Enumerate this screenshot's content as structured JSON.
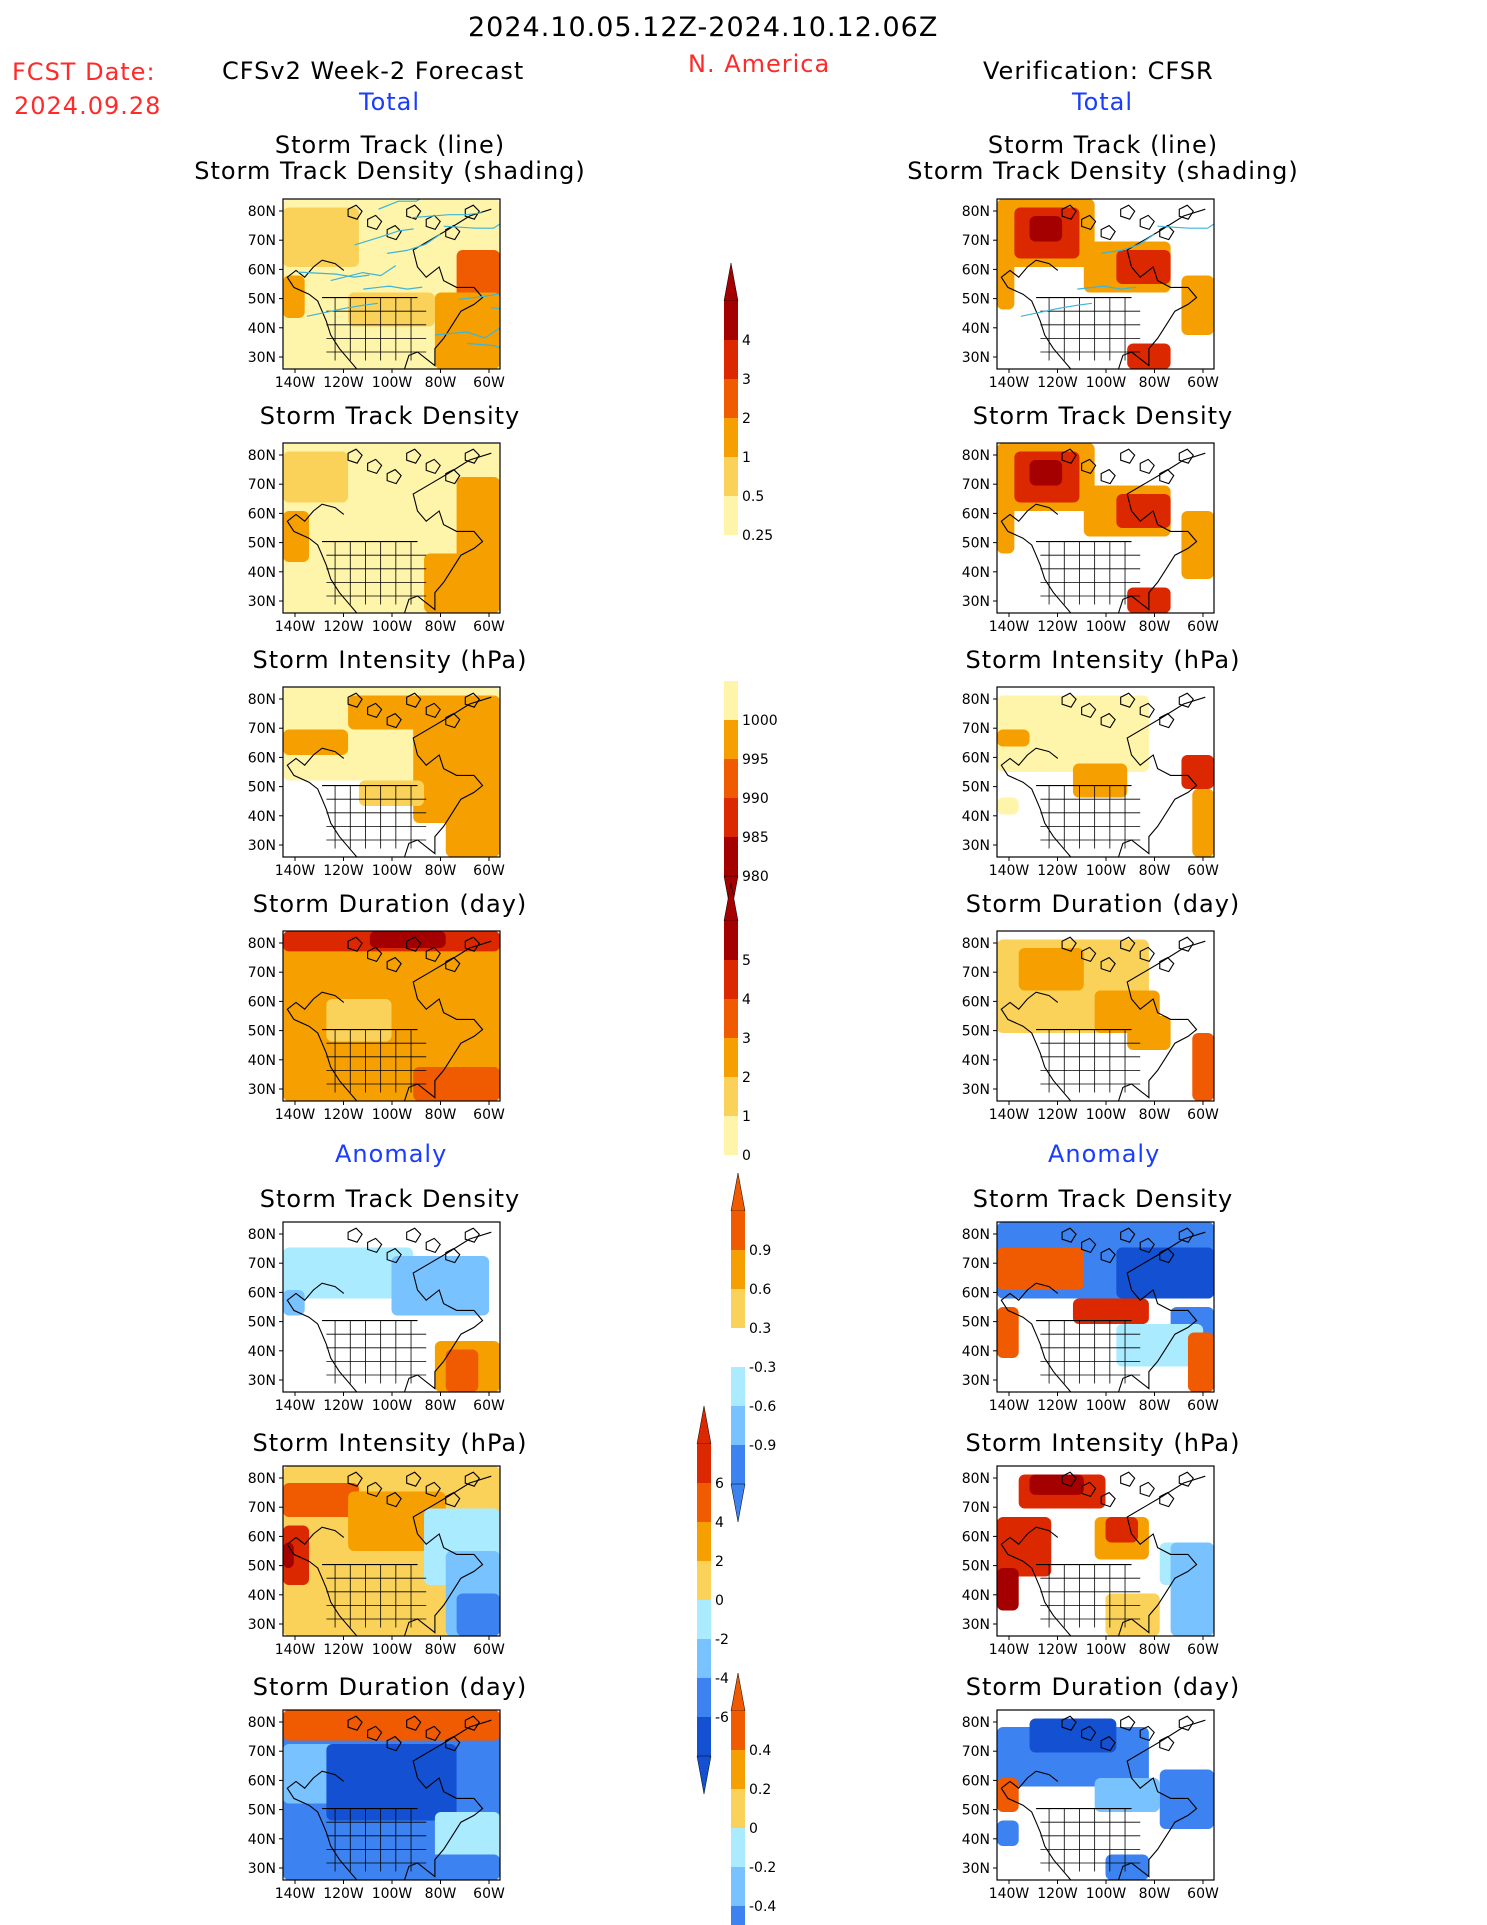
{
  "header": {
    "date_range": "2024.10.05.12Z-2024.10.12.06Z",
    "fcst_label": "FCST Date:",
    "fcst_date": "2024.09.28",
    "forecast_title": "CFSv2 Week-2 Forecast",
    "region": "N. America",
    "verification_title": "Verification: CFSR"
  },
  "sections": {
    "total": "Total",
    "anomaly": "Anomaly"
  },
  "panel_titles": {
    "track_line": "Storm Track (line)",
    "track_density_shading": "Storm Track Density (shading)",
    "track_density": "Storm Track Density",
    "intensity": "Storm Intensity (hPa)",
    "duration": "Storm Duration (day)"
  },
  "axes": {
    "lat_labels": [
      "80N",
      "70N",
      "60N",
      "50N",
      "40N",
      "30N"
    ],
    "lon_labels": [
      "140W",
      "120W",
      "100W",
      "80W",
      "60W"
    ]
  },
  "colorbars": {
    "density_total": [
      "4",
      "3",
      "2",
      "1",
      "0.5",
      "0.25"
    ],
    "intensity_total": [
      "1000",
      "995",
      "990",
      "985",
      "980"
    ],
    "duration_total": [
      "5",
      "4",
      "3",
      "2",
      "1",
      "0"
    ],
    "density_anom": [
      "0.9",
      "0.6",
      "0.3",
      "-0.3",
      "-0.6",
      "-0.9"
    ],
    "intensity_anom": [
      "6",
      "4",
      "2",
      "0",
      "-2",
      "-4",
      "-6"
    ],
    "duration_anom": [
      "0.4",
      "0.2",
      "0",
      "-0.2",
      "-0.4"
    ]
  },
  "colors": {
    "dark_red": "#a50000",
    "red": "#dc2800",
    "orange_red": "#f05a00",
    "orange": "#f5a000",
    "light_orange": "#fad25a",
    "pale_yellow": "#fff5aa",
    "pale_blue": "#aaebff",
    "light_blue": "#78c3ff",
    "blue": "#3c82f0",
    "dark_blue": "#1450d2",
    "track_line": "#3cb4dc"
  }
}
